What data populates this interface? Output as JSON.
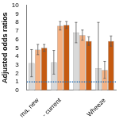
{
  "chart_data": {
    "type": "bar",
    "y_label": "Adjusted odds ratios",
    "categories": [
      "ma, new",
      "- current",
      null,
      "Wheeze"
    ],
    "series": [
      {
        "color": "#d9d9d9",
        "values": [
          3.2,
          3.3,
          6.8,
          2.6
        ],
        "errors": [
          1.6,
          1.4,
          1.2,
          5.4
        ]
      },
      {
        "color": "#f4b183",
        "values": [
          4.8,
          7.6,
          6.5,
          2.4
        ],
        "errors": [
          0.6,
          0.5,
          0.6,
          1.0
        ]
      },
      {
        "color": "#c55a11",
        "values": [
          5.0,
          7.7,
          5.8,
          5.8
        ],
        "errors": [
          0.4,
          0.4,
          0.5,
          0.6
        ]
      }
    ],
    "reference_line": {
      "value": 1,
      "color": "#2e75b6",
      "line_style": "dotted"
    },
    "ylim": [
      0,
      10
    ],
    "yticks": [
      0,
      1,
      2,
      3,
      4,
      5,
      6,
      7,
      8,
      9,
      10
    ],
    "grid": false
  }
}
